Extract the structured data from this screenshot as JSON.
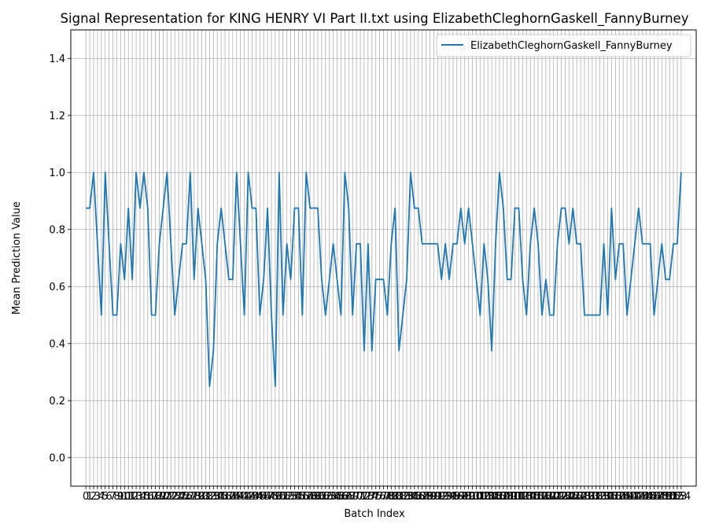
{
  "chart_data": {
    "type": "line",
    "title": "Signal Representation for KING HENRY VI Part II.txt using ElizabethCleghornGaskell_FannyBurney",
    "xlabel": "Batch Index",
    "ylabel": "Mean Prediction Value",
    "xlim": [
      -3.9,
      157.9
    ],
    "ylim": [
      -0.1,
      1.5
    ],
    "yticks": [
      "0.0",
      "0.2",
      "0.4",
      "0.6",
      "0.8",
      "1.0",
      "1.2",
      "1.4"
    ],
    "grid": true,
    "legend_position": "top-right",
    "colors": {
      "line": "#1f77b4",
      "grid": "#b0b0b0"
    },
    "series": [
      {
        "name": "ElizabethCleghornGaskell_FannyBurney",
        "values": [
          0.875,
          0.875,
          1.0,
          0.75,
          0.5,
          1.0,
          0.75,
          0.5,
          0.5,
          0.75,
          0.625,
          0.875,
          0.625,
          1.0,
          0.875,
          1.0,
          0.875,
          0.5,
          0.5,
          0.75,
          0.875,
          1.0,
          0.75,
          0.5,
          0.625,
          0.75,
          0.75,
          1.0,
          0.625,
          0.875,
          0.75,
          0.625,
          0.25,
          0.375,
          0.75,
          0.875,
          0.75,
          0.625,
          0.625,
          1.0,
          0.75,
          0.5,
          1.0,
          0.875,
          0.875,
          0.5,
          0.625,
          0.875,
          0.5,
          0.25,
          1.0,
          0.5,
          0.75,
          0.625,
          0.875,
          0.875,
          0.5,
          1.0,
          0.875,
          0.875,
          0.875,
          0.625,
          0.5,
          0.625,
          0.75,
          0.625,
          0.5,
          1.0,
          0.875,
          0.5,
          0.75,
          0.75,
          0.375,
          0.75,
          0.375,
          0.625,
          0.625,
          0.625,
          0.5,
          0.75,
          0.875,
          0.375,
          0.5,
          0.625,
          1.0,
          0.875,
          0.875,
          0.75,
          0.75,
          0.75,
          0.75,
          0.75,
          0.625,
          0.75,
          0.625,
          0.75,
          0.75,
          0.875,
          0.75,
          0.875,
          0.75,
          0.625,
          0.5,
          0.75,
          0.625,
          0.375,
          0.75,
          1.0,
          0.875,
          0.625,
          0.625,
          0.875,
          0.875,
          0.625,
          0.5,
          0.75,
          0.875,
          0.75,
          0.5,
          0.625,
          0.5,
          0.5,
          0.75,
          0.875,
          0.875,
          0.75,
          0.875,
          0.75,
          0.75,
          0.5,
          0.5,
          0.5,
          0.5,
          0.5,
          0.75,
          0.5,
          0.875,
          0.625,
          0.75,
          0.75,
          0.5,
          0.625,
          0.75,
          0.875,
          0.75,
          0.75,
          0.75,
          0.5,
          0.625,
          0.75,
          0.625,
          0.625,
          0.75,
          0.75,
          1.0
        ]
      }
    ]
  }
}
